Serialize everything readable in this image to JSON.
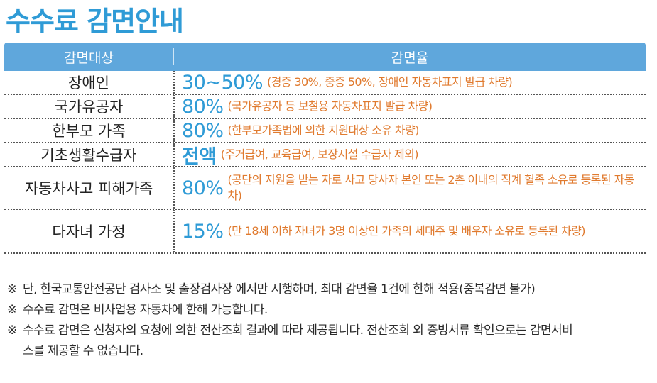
{
  "title": "수수료 감면안내",
  "table": {
    "headers": [
      "감면대상",
      "감면율"
    ],
    "rows": [
      {
        "target": "장애인",
        "rate": "30~50%",
        "note": "(경증 30%, 중증 50%, 장애인 자동차표지 발급 차량)"
      },
      {
        "target": "국가유공자",
        "rate": "80%",
        "note": "(국가유공자 등 보철용 자동차표지 발급 차량)"
      },
      {
        "target": "한부모 가족",
        "rate": "80%",
        "note": "(한부모가족법에 의한 지원대상 소유 차량)"
      },
      {
        "target": "기초생활수급자",
        "rate": "전액",
        "note": "(주거급여, 교육급여, 보장시설 수급자 제외)"
      },
      {
        "target": "자동차사고 피해가족",
        "rate": "80%",
        "note": "(공단의 지원을 받는 자로 사고 당사자 본인 또는 2촌 이내의 직계 혈족 소유로 등록된 자동차)"
      },
      {
        "target": "다자녀 가정",
        "rate": "15%",
        "note": "(만 18세 이하 자녀가 3명 이상인 가족의 세대주 및 배우자 소유로 등록된 차량)"
      }
    ]
  },
  "footnotes": [
    {
      "mark": "※",
      "text": "단, 한국교통안전공단 검사소 및 출장검사장 에서만 시행하며, 최대 감면율 1건에 한해 적용(중복감면 불가)"
    },
    {
      "mark": "※",
      "text": "수수료 감면은 비사업용 자동차에 한해 가능합니다."
    },
    {
      "mark": "※",
      "text": "수수료 감면은 신청자의 요청에 의한 전산조회 결과에 따라 제공됩니다. 전산조회 외 증빙서류 확인으로는 감면서비스를 제공할 수 없습니다."
    }
  ]
}
